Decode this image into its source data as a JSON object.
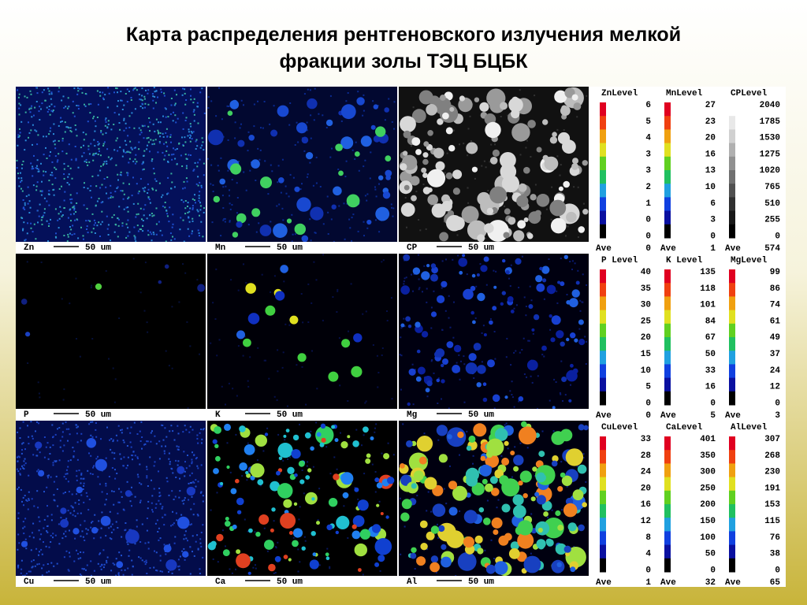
{
  "title_lines": [
    "Карта распределения рентгеновского излучения мелкой",
    "фракции золы ТЭЦ  БЦБК"
  ],
  "panels": [
    {
      "element": "Zn",
      "scale": "50 um"
    },
    {
      "element": "Mn",
      "scale": "50 um"
    },
    {
      "element": "CP",
      "scale": "50 um"
    },
    {
      "element": "P",
      "scale": "50 um"
    },
    {
      "element": "K",
      "scale": "50 um"
    },
    {
      "element": "Mg",
      "scale": "50 um"
    },
    {
      "element": "Cu",
      "scale": "50 um"
    },
    {
      "element": "Ca",
      "scale": "50 um"
    },
    {
      "element": "Al",
      "scale": "50 um"
    }
  ],
  "legends": [
    {
      "title": "ZnLevel",
      "levels": [
        6,
        5,
        4,
        3,
        3,
        2,
        1,
        0,
        0
      ],
      "ave_label": "Ave",
      "ave": 0
    },
    {
      "title": "MnLevel",
      "levels": [
        27,
        23,
        20,
        16,
        13,
        10,
        6,
        3,
        0
      ],
      "ave_label": "Ave",
      "ave": 1
    },
    {
      "title": "CPLevel",
      "levels": [
        2040,
        1785,
        1530,
        1275,
        1020,
        765,
        510,
        255,
        0
      ],
      "ave_label": "Ave",
      "ave": 574
    },
    {
      "title": "P Level",
      "levels": [
        40,
        35,
        30,
        25,
        20,
        15,
        10,
        5,
        0
      ],
      "ave_label": "Ave",
      "ave": 0
    },
    {
      "title": "K Level",
      "levels": [
        135,
        118,
        101,
        84,
        67,
        50,
        33,
        16,
        0
      ],
      "ave_label": "Ave",
      "ave": 5
    },
    {
      "title": "MgLevel",
      "levels": [
        99,
        86,
        74,
        61,
        49,
        37,
        24,
        12,
        0
      ],
      "ave_label": "Ave",
      "ave": 3
    },
    {
      "title": "CuLevel",
      "levels": [
        33,
        28,
        24,
        20,
        16,
        12,
        8,
        4,
        0
      ],
      "ave_label": "Ave",
      "ave": 1
    },
    {
      "title": "CaLevel",
      "levels": [
        401,
        350,
        300,
        250,
        200,
        150,
        100,
        50,
        0
      ],
      "ave_label": "Ave",
      "ave": 32
    },
    {
      "title": "AlLevel",
      "levels": [
        307,
        268,
        230,
        191,
        153,
        115,
        76,
        38,
        0
      ],
      "ave_label": "Ave",
      "ave": 65
    }
  ]
}
